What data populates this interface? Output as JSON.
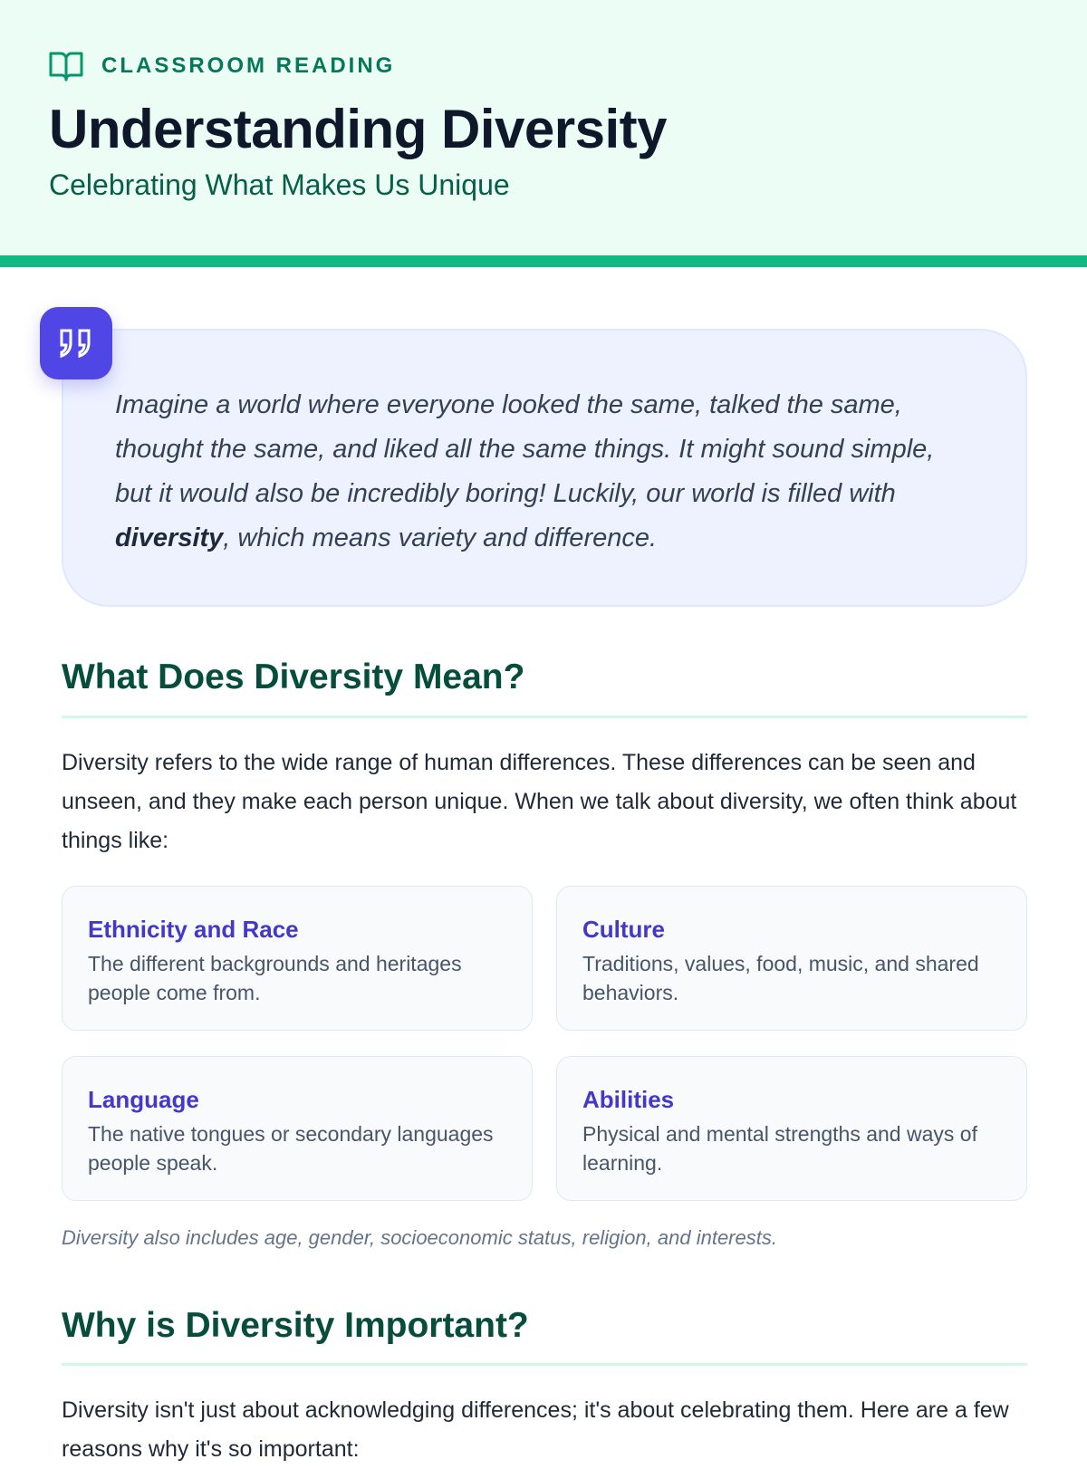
{
  "header": {
    "kicker": "CLASSROOM READING",
    "title": "Understanding Diversity",
    "subtitle": "Celebrating What Makes Us Unique"
  },
  "intro": {
    "before": "Imagine a world where everyone looked the same, talked the same, thought the same, and liked all the same things. It might sound simple, but it would also be incredibly boring! Luckily, our world is filled with ",
    "bold": "diversity",
    "after": ", which means variety and difference."
  },
  "section1": {
    "heading": "What Does Diversity Mean?",
    "paragraph": "Diversity refers to the wide range of human differences. These differences can be seen and unseen, and they make each person unique. When we talk about diversity, we often think about things like:",
    "cards": [
      {
        "title": "Ethnicity and Race",
        "text": "The different backgrounds and heritages people come from."
      },
      {
        "title": "Culture",
        "text": "Traditions, values, food, music, and shared behaviors."
      },
      {
        "title": "Language",
        "text": "The native tongues or secondary languages people speak."
      },
      {
        "title": "Abilities",
        "text": "Physical and mental strengths and ways of learning."
      }
    ],
    "note": "Diversity also includes age, gender, socioeconomic status, religion, and interests."
  },
  "section2": {
    "heading": "Why is Diversity Important?",
    "paragraph": "Diversity isn't just about acknowledging differences; it's about celebrating them. Here are a few reasons why it's so important:"
  },
  "colors": {
    "accent": "#10b981",
    "header_bg": "#ecfdf5",
    "quote_icon": "#4f46e5",
    "card_title": "#4338ca"
  },
  "icons": {
    "kicker": "book-open-icon",
    "quote": "quote-icon"
  }
}
